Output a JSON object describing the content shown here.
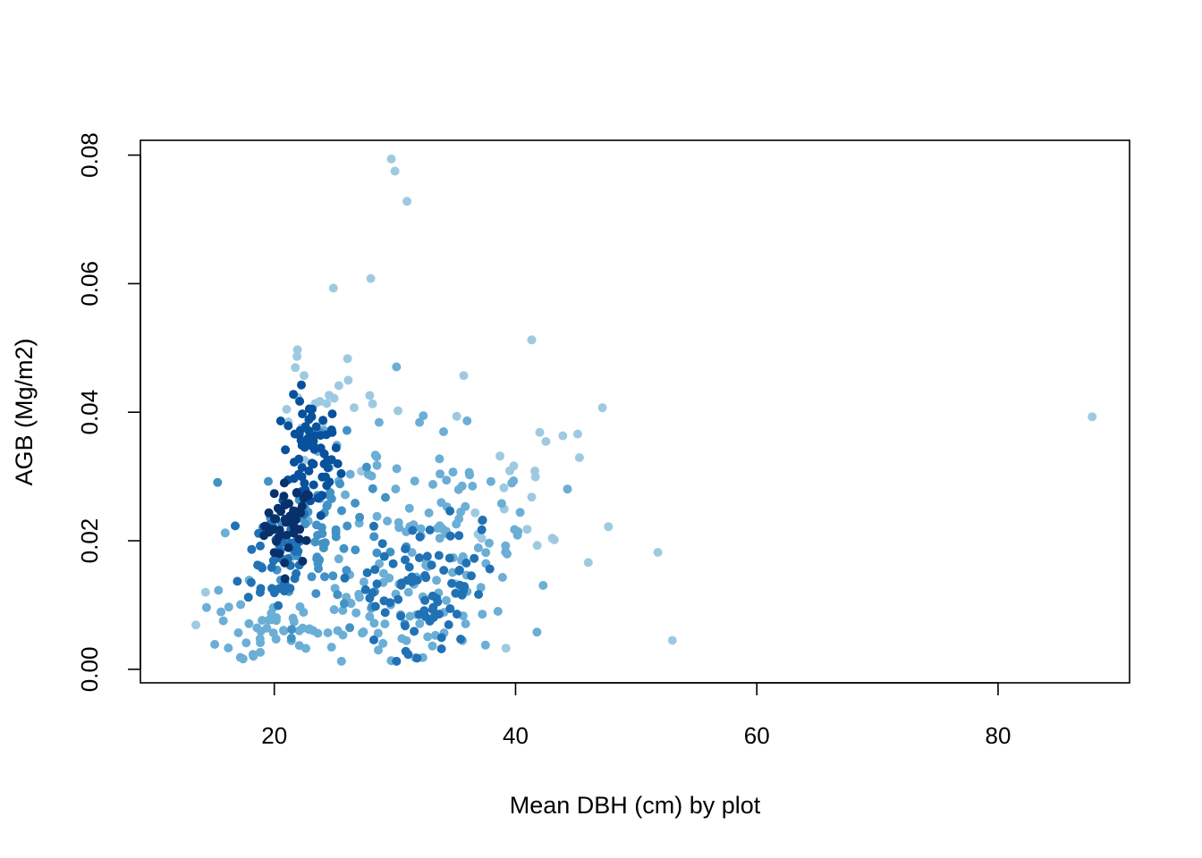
{
  "chart_data": {
    "type": "scatter",
    "title": "",
    "xlabel": "Mean DBH (cm) by plot",
    "ylabel": "AGB (Mg/m2)",
    "xlim": [
      8.9,
      90.9
    ],
    "ylim": [
      -0.0021,
      0.0823
    ],
    "xticks": [
      20,
      40,
      60,
      80
    ],
    "yticks": [
      0.0,
      0.02,
      0.04,
      0.06,
      0.08
    ],
    "xtick_labels": [
      "20",
      "40",
      "60",
      "80"
    ],
    "ytick_labels": [
      "0.00",
      "0.02",
      "0.04",
      "0.06",
      "0.08"
    ],
    "grid": false,
    "legend": "none",
    "color_scale": [
      "#9ecae1",
      "#6baed6",
      "#4292c6",
      "#2171b5",
      "#08519c",
      "#08306b"
    ],
    "notable_points": [
      {
        "x": 29.7,
        "y": 0.0794
      },
      {
        "x": 30.0,
        "y": 0.0775
      },
      {
        "x": 31.0,
        "y": 0.0728
      },
      {
        "x": 28.0,
        "y": 0.0608
      },
      {
        "x": 24.9,
        "y": 0.0593
      },
      {
        "x": 87.8,
        "y": 0.0393
      },
      {
        "x": 51.8,
        "y": 0.0182
      },
      {
        "x": 53.0,
        "y": 0.0045
      },
      {
        "x": 47.2,
        "y": 0.0407
      },
      {
        "x": 35.7,
        "y": 0.0457
      },
      {
        "x": 13.5,
        "y": 0.0069
      },
      {
        "x": 14.3,
        "y": 0.012
      },
      {
        "x": 39.2,
        "y": 0.0033
      }
    ],
    "clusters": [
      {
        "cx": 21.2,
        "cy": 0.0225,
        "sx": 1.0,
        "sy": 0.0032,
        "n": 45,
        "tone": 5
      },
      {
        "cx": 23.0,
        "cy": 0.033,
        "sx": 1.2,
        "sy": 0.0045,
        "n": 70,
        "tone": 4
      },
      {
        "cx": 20.2,
        "cy": 0.0175,
        "sx": 1.5,
        "sy": 0.0045,
        "n": 45,
        "tone": 3
      },
      {
        "cx": 24.0,
        "cy": 0.021,
        "sx": 2.5,
        "sy": 0.007,
        "n": 70,
        "tone": 2
      },
      {
        "cx": 32.5,
        "cy": 0.013,
        "sx": 2.3,
        "sy": 0.005,
        "n": 80,
        "tone": 3
      },
      {
        "cx": 19.5,
        "cy": 0.006,
        "sx": 2.8,
        "sy": 0.0035,
        "n": 45,
        "tone": 1
      },
      {
        "cx": 29.0,
        "cy": 0.008,
        "sx": 4.5,
        "sy": 0.0045,
        "n": 60,
        "tone": 1
      },
      {
        "cx": 35.0,
        "cy": 0.023,
        "sx": 3.8,
        "sy": 0.0065,
        "n": 55,
        "tone": 1
      },
      {
        "cx": 25.0,
        "cy": 0.042,
        "sx": 2.2,
        "sy": 0.005,
        "n": 25,
        "tone": 0
      },
      {
        "cx": 30.0,
        "cy": 0.028,
        "sx": 3.5,
        "sy": 0.008,
        "n": 40,
        "tone": 1
      },
      {
        "cx": 40.5,
        "cy": 0.026,
        "sx": 3.2,
        "sy": 0.008,
        "n": 25,
        "tone": 0
      }
    ]
  }
}
